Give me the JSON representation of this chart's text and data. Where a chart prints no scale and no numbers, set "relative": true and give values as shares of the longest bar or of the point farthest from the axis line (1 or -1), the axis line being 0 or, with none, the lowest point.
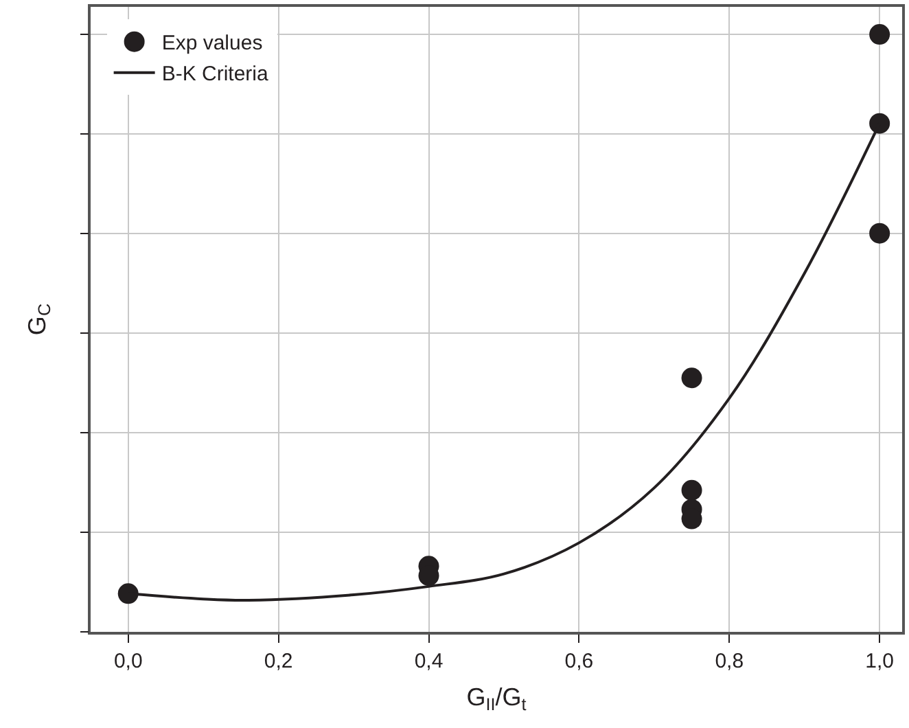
{
  "chart_data": {
    "type": "scatter",
    "xlabel": "G$_{II}$/G$_{t}$",
    "ylabel": "G$_{C}$",
    "relative": true,
    "grid": true,
    "legend": "top left",
    "xlim": [
      -0.05,
      1.03
    ],
    "xticks": [
      {
        "value": 0,
        "label": "0,0"
      },
      {
        "value": 0.2,
        "label": "0,2"
      },
      {
        "value": 0.4,
        "label": "0,4"
      },
      {
        "value": 0.6,
        "label": "0,6"
      },
      {
        "value": 0.8,
        "label": "0,8"
      },
      {
        "value": 1,
        "label": "1,0"
      }
    ],
    "series": [
      {
        "name": "Exp values",
        "marker": "circle",
        "color": "#231f20",
        "x": [
          0,
          0.4,
          0.4,
          0.75,
          0.75,
          0.75,
          0.75,
          1,
          1,
          1
        ],
        "values": [
          0.064,
          0.11,
          0.094,
          0.425,
          0.237,
          0.205,
          0.189,
          1,
          0.851,
          0.667
        ]
      },
      {
        "name": "B-K Criteria",
        "type": "line",
        "color": "#231f20",
        "line_style": "solid",
        "x": [
          0,
          0.1,
          0.16,
          0.3,
          0.4,
          0.5,
          0.6,
          0.7,
          0.8,
          0.9,
          1
        ],
        "values": [
          0.064,
          0.055,
          0.053,
          0.062,
          0.076,
          0.097,
          0.149,
          0.241,
          0.391,
          0.6,
          0.851
        ]
      }
    ]
  }
}
